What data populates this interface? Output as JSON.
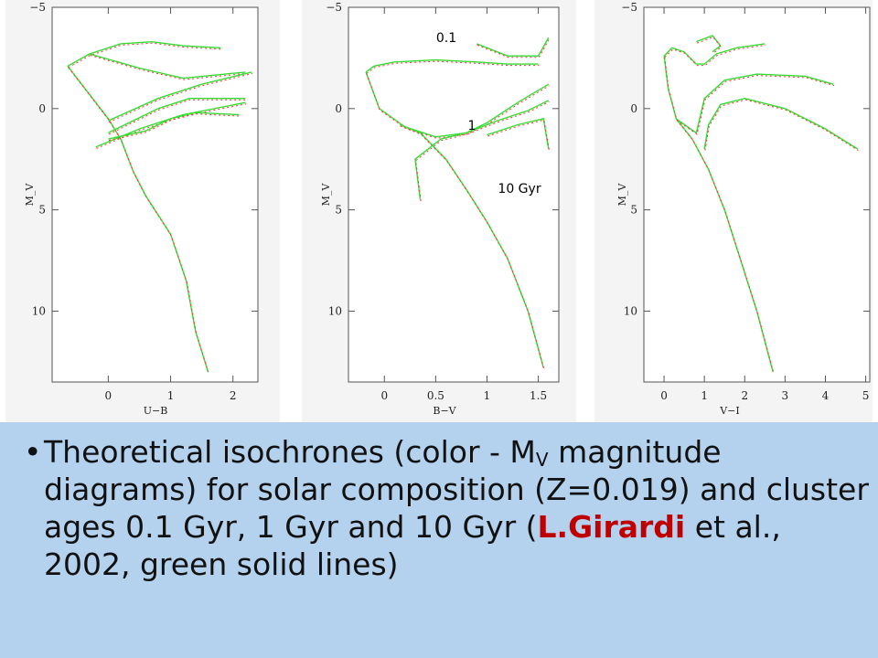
{
  "chart_data": [
    {
      "type": "line",
      "xlabel": "U−B",
      "ylabel": "M_V",
      "xlim": [
        -0.9,
        2.4
      ],
      "ylim": [
        13.5,
        -5
      ],
      "x_ticks": [
        "0",
        "1",
        "2"
      ],
      "y_ticks": [
        "−5",
        "0",
        "5",
        "10"
      ],
      "series": [
        {
          "values": [
            [
              -0.65,
              -2.1
            ],
            [
              -0.3,
              -2.7
            ],
            [
              0.2,
              -3.2
            ],
            [
              0.7,
              -3.3
            ],
            [
              1.2,
              -3.1
            ],
            [
              1.8,
              -3.0
            ]
          ]
        },
        {
          "values": [
            [
              -0.65,
              -2.1
            ],
            [
              -0.2,
              -0.3
            ],
            [
              0.0,
              0.5
            ],
            [
              0.2,
              1.5
            ],
            [
              0.4,
              3.1
            ],
            [
              0.6,
              4.3
            ],
            [
              1.0,
              6.2
            ],
            [
              1.25,
              8.5
            ],
            [
              1.4,
              11.0
            ],
            [
              1.6,
              13.0
            ]
          ]
        },
        {
          "values": [
            [
              -0.3,
              -2.7
            ],
            [
              0.5,
              -2.0
            ],
            [
              1.2,
              -1.5
            ],
            [
              2.2,
              -1.8
            ]
          ]
        },
        {
          "values": [
            [
              0.0,
              0.6
            ],
            [
              0.8,
              -0.5
            ],
            [
              1.5,
              -1.2
            ],
            [
              2.3,
              -1.8
            ]
          ]
        },
        {
          "values": [
            [
              -0.2,
              1.9
            ],
            [
              0.5,
              1.0
            ],
            [
              1.2,
              0.3
            ],
            [
              2.2,
              -0.3
            ]
          ]
        },
        {
          "values": [
            [
              0.0,
              1.2
            ],
            [
              0.8,
              0.0
            ],
            [
              1.3,
              -0.5
            ],
            [
              2.2,
              -0.5
            ]
          ]
        },
        {
          "values": [
            [
              0.0,
              1.5
            ],
            [
              0.6,
              1.1
            ],
            [
              1.0,
              0.5
            ],
            [
              1.4,
              0.2
            ],
            [
              2.1,
              0.3
            ]
          ]
        }
      ]
    },
    {
      "type": "line",
      "xlabel": "B−V",
      "ylabel": "M_V",
      "xlim": [
        -0.35,
        1.7
      ],
      "ylim": [
        13.5,
        -5
      ],
      "x_ticks": [
        "0",
        "0.5",
        "1",
        "1.5"
      ],
      "y_ticks": [
        "−5",
        "0",
        "5",
        "10"
      ],
      "annotations": [
        "0.1",
        "1",
        "10 Gyr"
      ],
      "series": [
        {
          "values": [
            [
              -0.18,
              -1.8
            ],
            [
              -0.1,
              -2.1
            ],
            [
              0.1,
              -2.3
            ],
            [
              0.5,
              -2.4
            ],
            [
              0.9,
              -2.3
            ],
            [
              1.2,
              -2.2
            ],
            [
              1.5,
              -2.2
            ]
          ]
        },
        {
          "values": [
            [
              -0.18,
              -1.8
            ],
            [
              -0.05,
              0.0
            ],
            [
              0.2,
              0.9
            ],
            [
              0.5,
              1.4
            ],
            [
              0.8,
              1.2
            ],
            [
              1.0,
              0.7
            ],
            [
              1.3,
              -0.3
            ],
            [
              1.6,
              -1.2
            ]
          ]
        },
        {
          "values": [
            [
              0.15,
              0.8
            ],
            [
              0.35,
              1.2
            ],
            [
              0.6,
              2.5
            ],
            [
              0.8,
              4.0
            ],
            [
              1.0,
              5.6
            ],
            [
              1.2,
              7.4
            ],
            [
              1.4,
              10.0
            ],
            [
              1.55,
              12.8
            ]
          ]
        },
        {
          "values": [
            [
              0.35,
              4.5
            ],
            [
              0.3,
              2.5
            ],
            [
              0.55,
              1.5
            ],
            [
              0.8,
              1.2
            ],
            [
              1.1,
              0.6
            ],
            [
              1.4,
              0.1
            ],
            [
              1.6,
              -0.4
            ]
          ]
        },
        {
          "values": [
            [
              0.9,
              -3.2
            ],
            [
              1.2,
              -2.6
            ],
            [
              1.5,
              -2.6
            ],
            [
              1.6,
              -3.5
            ]
          ]
        },
        {
          "values": [
            [
              1.0,
              1.3
            ],
            [
              1.3,
              0.8
            ],
            [
              1.55,
              0.5
            ],
            [
              1.6,
              2.0
            ]
          ]
        }
      ]
    },
    {
      "type": "line",
      "xlabel": "V−I",
      "ylabel": "M_V",
      "xlim": [
        -0.5,
        5.1
      ],
      "ylim": [
        13.5,
        -5
      ],
      "x_ticks": [
        "0",
        "1",
        "2",
        "3",
        "4",
        "5"
      ],
      "y_ticks": [
        "−5",
        "0",
        "5",
        "10"
      ],
      "series": [
        {
          "values": [
            [
              0.0,
              -2.6
            ],
            [
              0.2,
              -3.0
            ],
            [
              0.5,
              -2.8
            ],
            [
              0.8,
              -2.2
            ],
            [
              1.0,
              -2.2
            ],
            [
              1.3,
              -2.7
            ],
            [
              1.8,
              -3.0
            ],
            [
              2.5,
              -3.2
            ]
          ]
        },
        {
          "values": [
            [
              0.0,
              -2.6
            ],
            [
              0.1,
              -1.0
            ],
            [
              0.3,
              0.5
            ],
            [
              0.7,
              1.5
            ],
            [
              1.1,
              3.0
            ],
            [
              1.5,
              5.0
            ],
            [
              1.9,
              7.5
            ],
            [
              2.3,
              10.0
            ],
            [
              2.7,
              13.0
            ]
          ]
        },
        {
          "values": [
            [
              0.3,
              0.5
            ],
            [
              0.8,
              1.2
            ],
            [
              1.0,
              -0.5
            ],
            [
              1.5,
              -1.4
            ],
            [
              2.3,
              -1.7
            ],
            [
              3.5,
              -1.6
            ],
            [
              4.2,
              -1.2
            ]
          ]
        },
        {
          "values": [
            [
              1.0,
              2.0
            ],
            [
              1.1,
              0.8
            ],
            [
              1.4,
              -0.2
            ],
            [
              2.0,
              -0.5
            ],
            [
              3.0,
              0.0
            ],
            [
              4.0,
              1.0
            ],
            [
              4.8,
              2.0
            ]
          ]
        },
        {
          "values": [
            [
              0.8,
              -3.3
            ],
            [
              1.2,
              -3.6
            ],
            [
              1.4,
              -3.1
            ],
            [
              1.2,
              -2.8
            ]
          ]
        }
      ]
    }
  ],
  "caption": {
    "bullet": "•",
    "part1": "Theoretical isochrones (color - M",
    "sub": "V",
    "part2": " magnitude diagrams) for solar composition (Z=0.019) and cluster ages 0.1 Gyr, 1 Gyr and 10 Gyr (",
    "author": "L.Girardi",
    "part3": " et al., 2002, green solid lines)"
  },
  "colors": {
    "model_line": "#33dd33",
    "comparison_line": "#ff3030",
    "caption_bg": "#b4d2ee",
    "author": "#c00000"
  }
}
